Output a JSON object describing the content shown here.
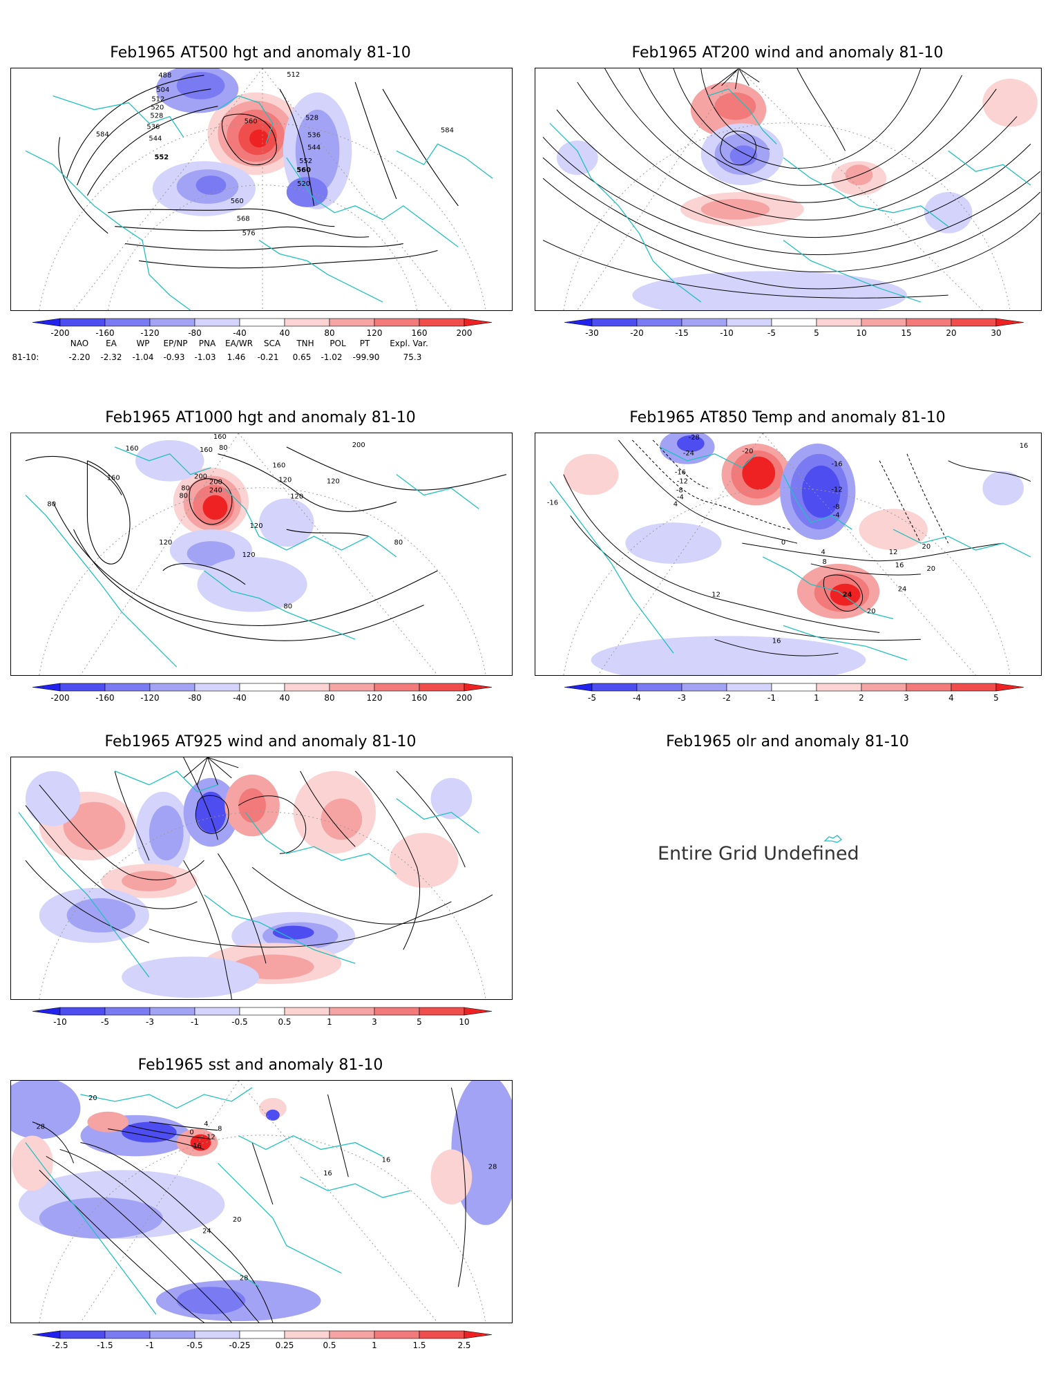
{
  "colors": {
    "coast": "#20c0c0",
    "contour": "#000000",
    "palette": [
      "#2222ee",
      "#4d4df0",
      "#7a7af2",
      "#a3a3f5",
      "#d3d3fb",
      "#ffffff",
      "#fbd3d3",
      "#f5a3a3",
      "#f27a7a",
      "#f04d4d",
      "#ee2222"
    ]
  },
  "panels": [
    {
      "id": "at500",
      "title": "Feb1965 AT500 hgt and anomaly 81-10",
      "contour_labels": [
        "488",
        "504",
        "512",
        "520",
        "528",
        "536",
        "544",
        "552",
        "560",
        "568",
        "576",
        "584",
        "560",
        "528",
        "536",
        "544",
        "552",
        "560",
        "520",
        "584",
        "512"
      ],
      "colorbar": [
        "-200",
        "-160",
        "-120",
        "-80",
        "-40",
        "40",
        "80",
        "120",
        "160",
        "200"
      ]
    },
    {
      "id": "at200",
      "title": "Feb1965 AT200 wind and anomaly 81-10",
      "contour_labels": [],
      "colorbar": [
        "-30",
        "-20",
        "-15",
        "-10",
        "-5",
        "5",
        "10",
        "15",
        "20",
        "30"
      ]
    },
    {
      "id": "at1000",
      "title": "Feb1965 AT1000 hgt and anomaly 81-10",
      "contour_labels": [
        "160",
        "160",
        "80",
        "80",
        "200",
        "200",
        "240",
        "160",
        "160",
        "120",
        "120",
        "80",
        "160",
        "120",
        "120",
        "80",
        "120",
        "80",
        "120",
        "200",
        "80"
      ],
      "colorbar": [
        "-200",
        "-160",
        "-120",
        "-80",
        "-40",
        "40",
        "80",
        "120",
        "160",
        "200"
      ]
    },
    {
      "id": "at850",
      "title": "Feb1965 AT850 Temp and anomaly 81-10",
      "contour_labels": [
        "-28",
        "-24",
        "-20",
        "-16",
        "-12",
        "-8",
        "-4",
        "4",
        "-16",
        "-12",
        "-8",
        "-4",
        "0",
        "4",
        "8",
        "12",
        "16",
        "20",
        "24",
        "24",
        "20",
        "16",
        "12",
        "-16",
        "16",
        "20"
      ],
      "colorbar": [
        "-5",
        "-4",
        "-3",
        "-2",
        "-1",
        "1",
        "2",
        "3",
        "4",
        "5"
      ]
    },
    {
      "id": "at925",
      "title": "Feb1965 AT925 wind and anomaly 81-10",
      "contour_labels": [],
      "colorbar": [
        "-10",
        "-5",
        "-3",
        "-1",
        "-0.5",
        "0.5",
        "1",
        "3",
        "5",
        "10"
      ]
    },
    {
      "id": "olr",
      "title": "Feb1965 olr and anomaly 81-10",
      "message": "Entire Grid Undefined"
    },
    {
      "id": "sst",
      "title": "Feb1965 sst and anomaly 81-10",
      "contour_labels": [
        "28",
        "20",
        "16",
        "12",
        "8",
        "4",
        "0",
        "20",
        "24",
        "28",
        "28",
        "16",
        "16"
      ],
      "colorbar": [
        "-2.5",
        "-1.5",
        "-1",
        "-0.5",
        "-0.25",
        "0.25",
        "0.5",
        "1",
        "1.5",
        "2.5"
      ]
    }
  ],
  "indices": {
    "headers": [
      "NAO",
      "EA",
      "WP",
      "EP/NP",
      "PNA",
      "EA/WR",
      "SCA",
      "TNH",
      "POL",
      "PT",
      "Expl. Var."
    ],
    "row_label": "81-10:",
    "values": [
      "-2.20",
      "-2.32",
      "-1.04",
      "-0.93",
      "-1.03",
      "1.46",
      "-0.21",
      "0.65",
      "-1.02",
      "-99.90",
      "75.3"
    ]
  }
}
